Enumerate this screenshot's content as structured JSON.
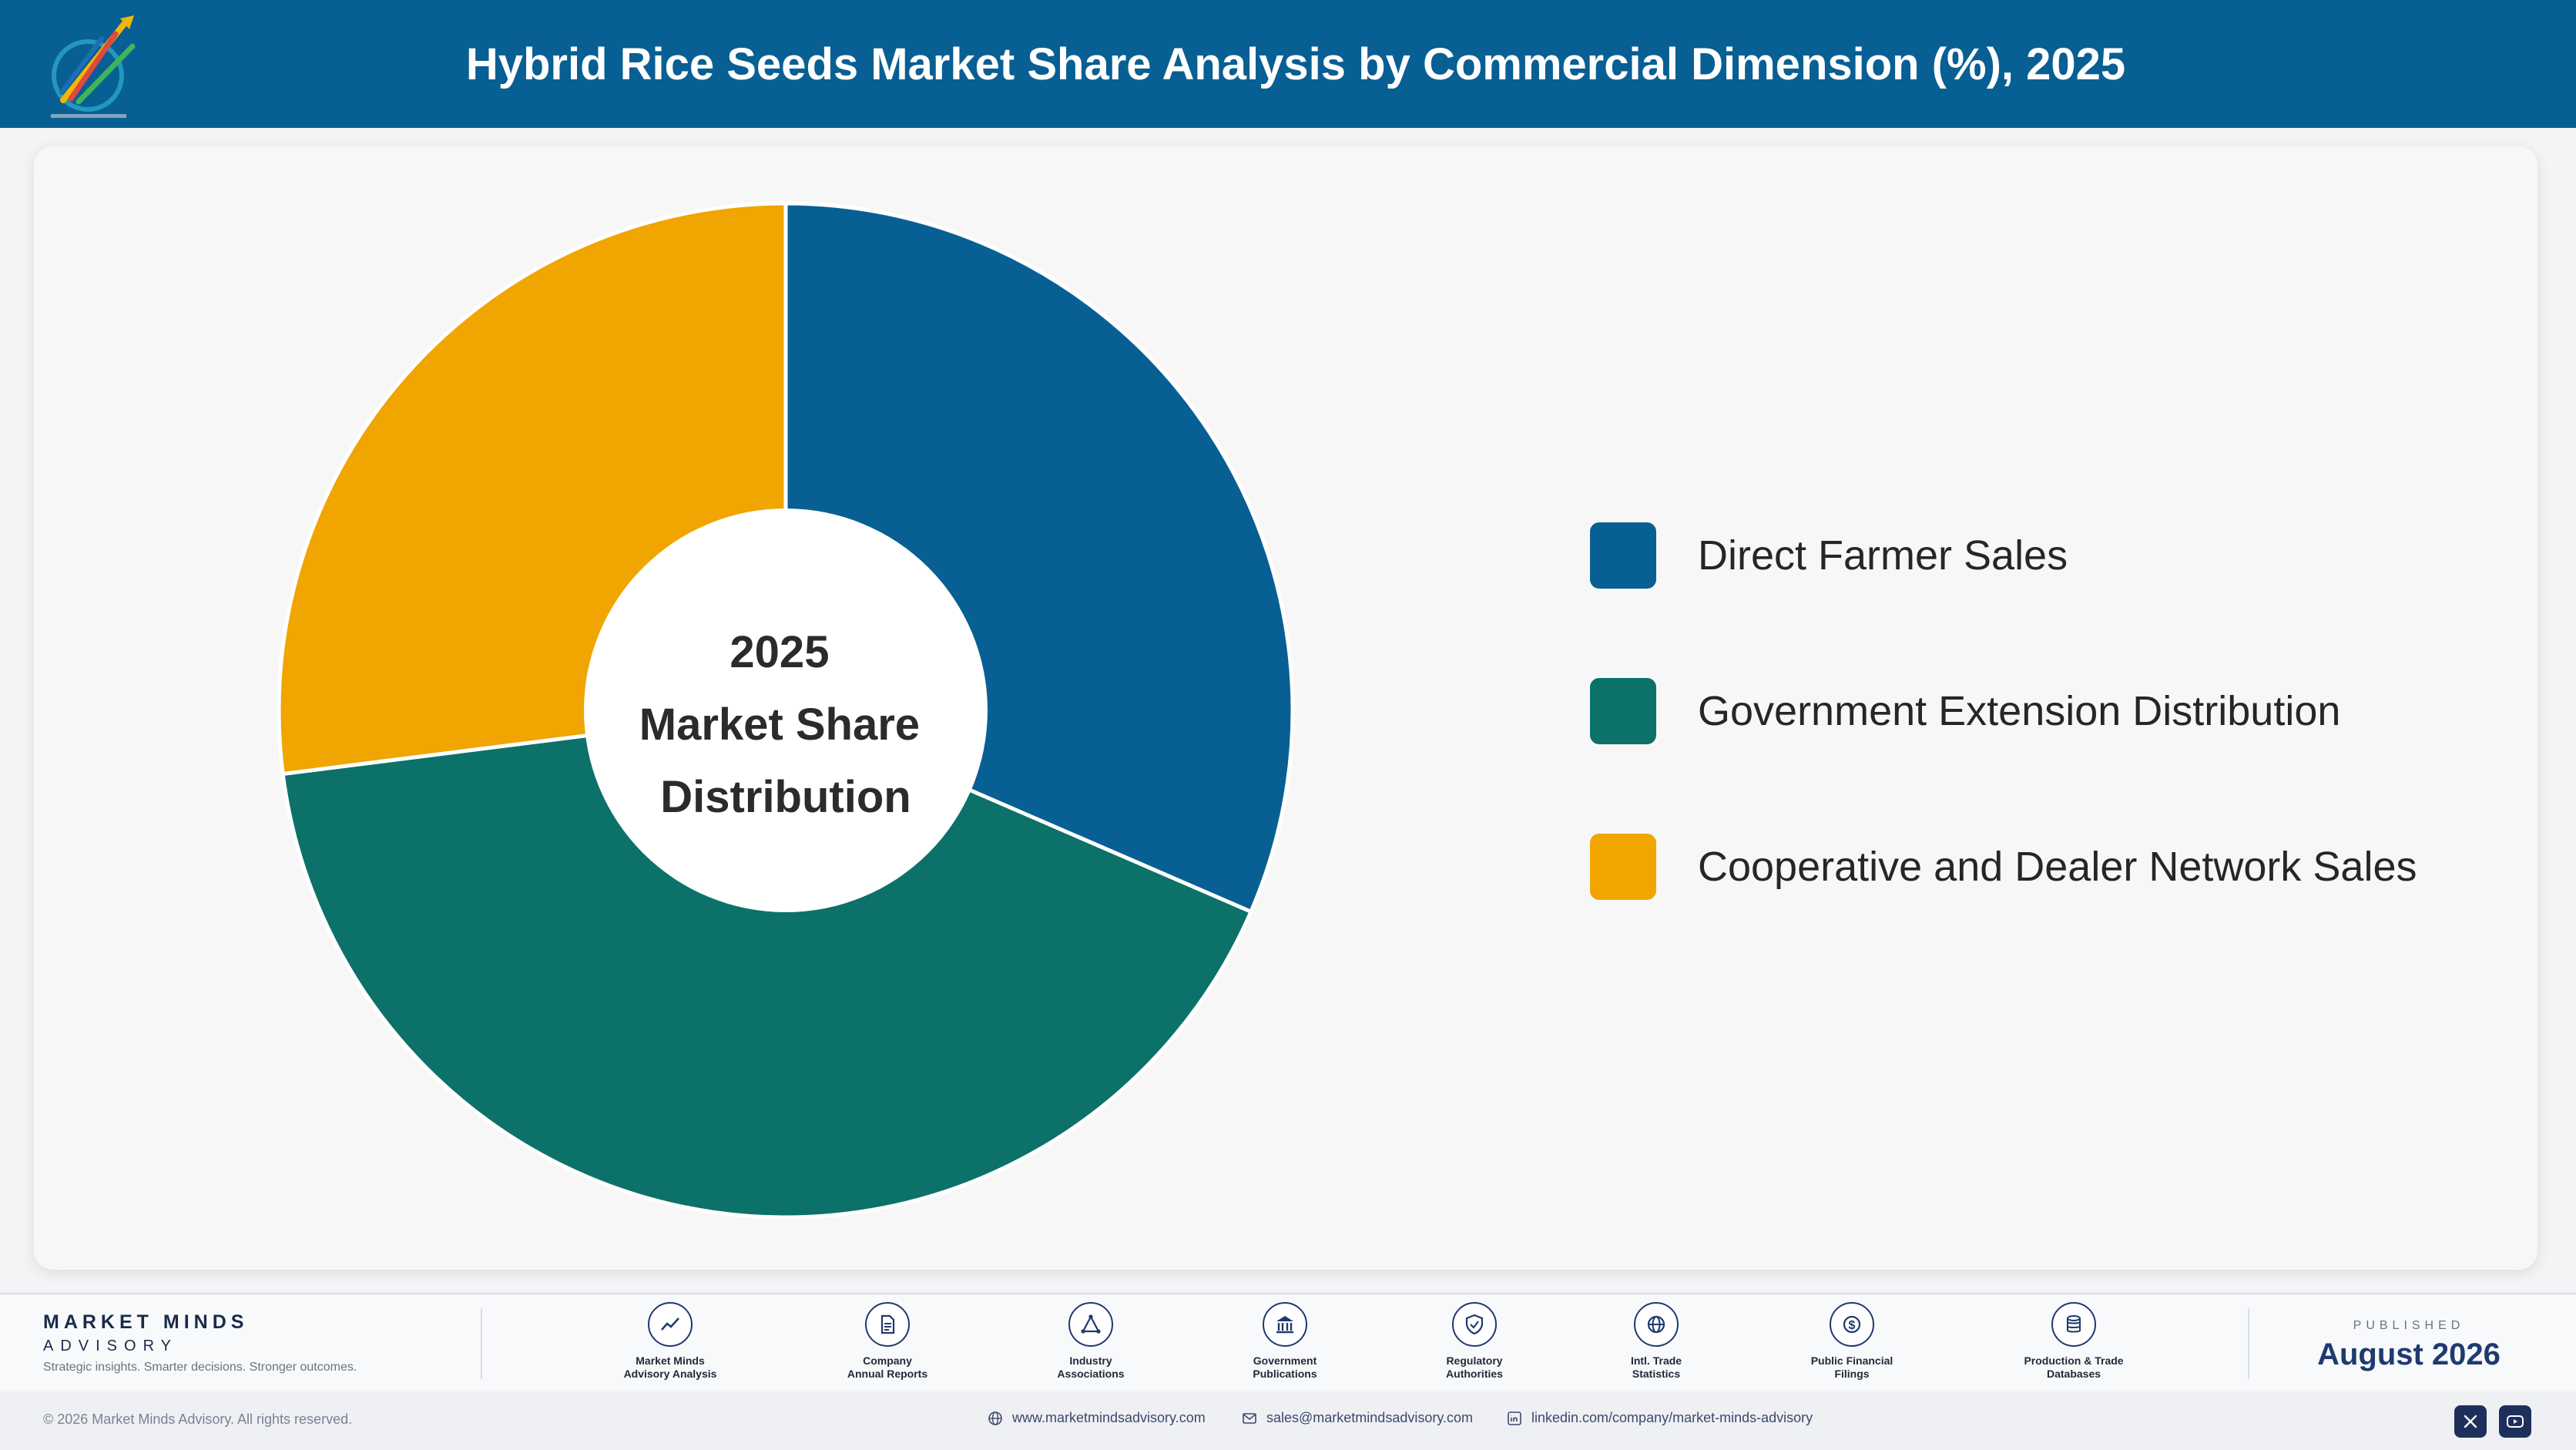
{
  "header": {
    "title": "Hybrid Rice Seeds Market Share Analysis by Commercial Dimension (%), 2025"
  },
  "chart_data": {
    "type": "pie",
    "variant": "donut",
    "center_text": [
      "2025",
      "Market Share",
      "Distribution"
    ],
    "categories": [
      "Direct Farmer Sales",
      "Government Extension Distribution",
      "Cooperative and Dealer Network Sales"
    ],
    "values": [
      31.5,
      41.5,
      27.0
    ],
    "colors": [
      "#085f93",
      "#0c7169",
      "#f0a500"
    ],
    "start_angle_deg": 0,
    "direction": "clockwise",
    "legend_position": "right"
  },
  "footer": {
    "brand_name": "MARKET MINDS",
    "brand_sub": "ADVISORY",
    "brand_tag": "Strategic insights. Smarter decisions. Stronger outcomes.",
    "sources": [
      {
        "label": "Market Minds\nAdvisory Analysis",
        "icon": "chart-line-icon"
      },
      {
        "label": "Company\nAnnual Reports",
        "icon": "document-icon"
      },
      {
        "label": "Industry\nAssociations",
        "icon": "network-icon"
      },
      {
        "label": "Government\nPublications",
        "icon": "building-icon"
      },
      {
        "label": "Regulatory\nAuthorities",
        "icon": "shield-check-icon"
      },
      {
        "label": "Intl. Trade\nStatistics",
        "icon": "globe-icon"
      },
      {
        "label": "Public Financial\nFilings",
        "icon": "dollar-coin-icon"
      },
      {
        "label": "Production & Trade\nDatabases",
        "icon": "database-icon"
      }
    ],
    "published_label": "PUBLISHED",
    "published_date": "August 2026",
    "copyright": "© 2026 Market Minds Advisory. All rights reserved.",
    "website": "www.marketmindsadvisory.com",
    "email": "sales@marketmindsadvisory.com",
    "linkedin": "linkedin.com/company/market-minds-advisory"
  }
}
